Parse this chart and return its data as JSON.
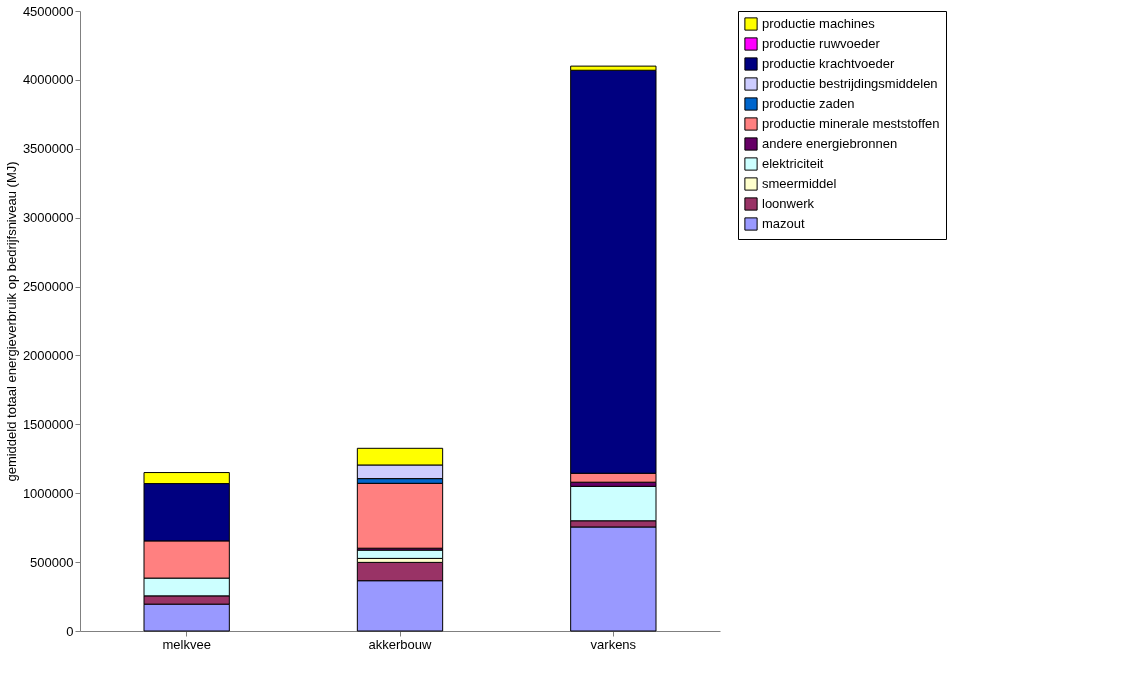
{
  "chart_data": {
    "type": "bar",
    "stacked": true,
    "ylabel": "gemiddeld totaal energieverbruik op bedrijfsniveau (MJ)",
    "categories": [
      "melkvee",
      "akkerbouw",
      "varkens"
    ],
    "series": [
      {
        "name": "mazout",
        "color": "#9999ff",
        "values": [
          195000,
          365000,
          755000
        ]
      },
      {
        "name": "loonwerk",
        "color": "#993366",
        "values": [
          60000,
          133000,
          45000
        ]
      },
      {
        "name": "smeermiddel",
        "color": "#ffffcc",
        "values": [
          null,
          29000,
          null
        ]
      },
      {
        "name": "elektriciteit",
        "color": "#ccffff",
        "values": [
          129000,
          60000,
          250000
        ]
      },
      {
        "name": "andere energiebronnen",
        "color": "#660066",
        "values": [
          null,
          14000,
          30000
        ]
      },
      {
        "name": "productie minerale meststoffen",
        "color": "#ff8080",
        "values": [
          270000,
          471000,
          65000
        ]
      },
      {
        "name": "productie zaden",
        "color": "#0066cc",
        "values": [
          null,
          34000,
          null
        ]
      },
      {
        "name": "productie bestrijdingsmiddelen",
        "color": "#ccccff",
        "values": [
          null,
          99000,
          null
        ]
      },
      {
        "name": "productie krachtvoeder",
        "color": "#000080",
        "values": [
          416000,
          null,
          2925000
        ]
      },
      {
        "name": "productie ruwvoeder",
        "color": "#ff00ff",
        "values": [
          null,
          null,
          null
        ]
      },
      {
        "name": "productie machines",
        "color": "#ffff00",
        "values": [
          80000,
          121000,
          30000
        ]
      }
    ],
    "ylim": [
      0,
      4500000
    ],
    "yticks": [
      0,
      500000,
      1000000,
      1500000,
      2000000,
      2500000,
      3000000,
      3500000,
      4000000,
      4500000
    ],
    "grid": false,
    "legend": "right"
  }
}
